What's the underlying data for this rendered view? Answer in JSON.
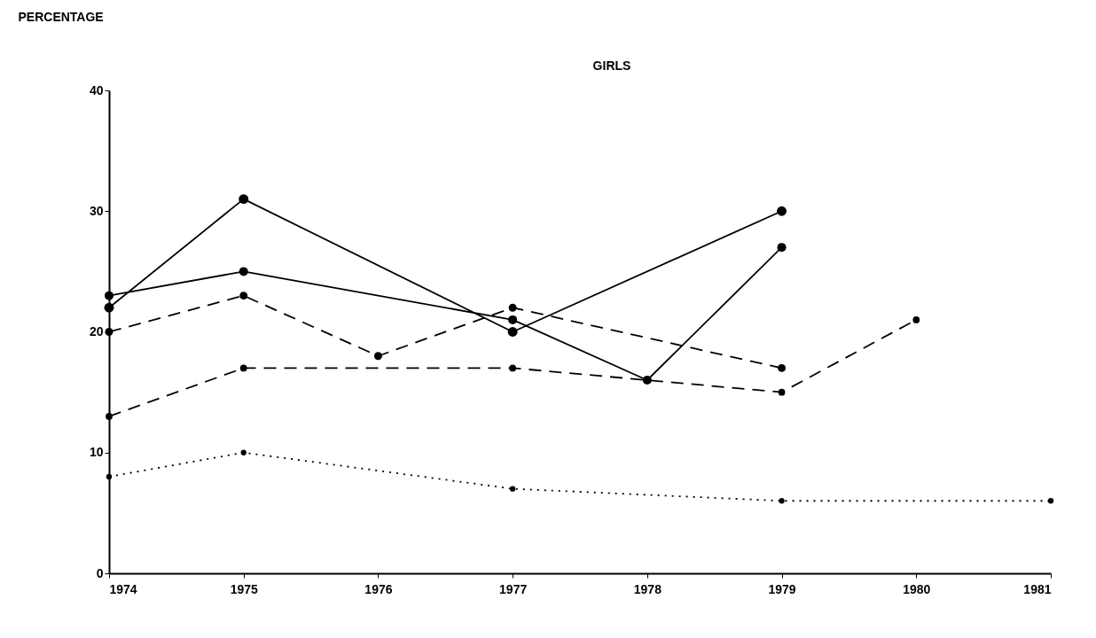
{
  "chart_data": {
    "type": "line",
    "title": "GIRLS",
    "ylabel": "PERCENTAGE",
    "xlim": [
      1974,
      1981
    ],
    "xticks": [
      1974,
      1975,
      1976,
      1977,
      1978,
      1979,
      1980,
      1981
    ],
    "ylim": [
      0,
      40
    ],
    "yticks": [
      0,
      10,
      20,
      30,
      40
    ],
    "grid": false,
    "marker": "circle",
    "series": [
      {
        "color": "#000000",
        "line_style": "solid",
        "x": [
          1974,
          1975,
          1977,
          1979
        ],
        "values": [
          22,
          31,
          20,
          30
        ]
      },
      {
        "color": "#000000",
        "line_style": "solid",
        "x": [
          1974,
          1975,
          1977,
          1978,
          1979
        ],
        "values": [
          23,
          25,
          21,
          16,
          27
        ]
      },
      {
        "color": "#000000",
        "line_style": "dashed",
        "x": [
          1974,
          1975,
          1976,
          1977,
          1979
        ],
        "values": [
          20,
          23,
          18,
          22,
          17
        ]
      },
      {
        "color": "#000000",
        "line_style": "dashed",
        "x": [
          1974,
          1975,
          1977,
          1978,
          1979,
          1980
        ],
        "values": [
          13,
          17,
          17,
          16,
          15,
          21
        ]
      },
      {
        "color": "#000000",
        "line_style": "dotted",
        "x": [
          1974,
          1975,
          1977,
          1979,
          1981
        ],
        "values": [
          8,
          10,
          7,
          6,
          6
        ]
      }
    ]
  }
}
